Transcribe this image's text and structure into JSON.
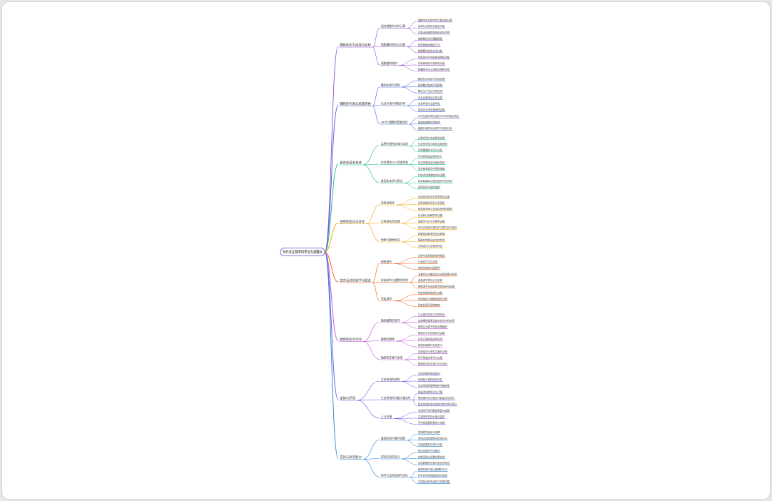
{
  "root": {
    "label": "专升本生物学科考试大纲要点",
    "color": "#6b4ec9"
  },
  "branches": [
    {
      "label": "细胞的化学组成与结构",
      "color": "#8e44d9",
      "subs": [
        {
          "label": "组成细胞的化学元素",
          "leaves": [
            "细胞中常见的化学元素及其分类",
            "各种化合物的含量及功能",
            "水和无机盐的存在形式与作用"
          ]
        },
        {
          "label": "细胞膜的结构与功能",
          "leaves": [
            "细胞膜的流动镶嵌模型",
            "物质跨膜运输的方式",
            "细胞膜的信息交流功能"
          ]
        },
        {
          "label": "细胞器的结构",
          "leaves": [
            "线粒体与叶绿体的结构和功能",
            "内质网和高尔基体的功能",
            "核糖体与中心体的分布和作用"
          ]
        }
      ]
    },
    {
      "label": "细胞的代谢与能量转换",
      "color": "#3b5bdb",
      "subs": [
        {
          "label": "酶的本质与特性",
          "leaves": [
            "酶的化学本质与作用机理",
            "影响酶活性的环境因素",
            "酶在生产生活中的应用"
          ]
        },
        {
          "label": "光合作用与呼吸作用",
          "leaves": [
            "光反应和暗反应的过程",
            "有氧呼吸与无氧呼吸",
            "影响光合作用速率的因素"
          ]
        },
        {
          "label": "ATP与细胞的能量供应",
          "leaves": [
            "ATP的结构简式及其与ADP的相互转化",
            "能量在细胞中的转换",
            "细胞代谢的综合调节与实例分析"
          ]
        }
      ]
    },
    {
      "label": "遗传的基本规律",
      "color": "#12b886",
      "subs": [
        {
          "label": "孟德尔遗传定律与实验",
          "leaves": [
            "分离定律与自由组合定律",
            "性状的显性与隐性及其表现",
            "遗传图解的书写与分析"
          ]
        },
        {
          "label": "伴性遗传与人类遗传病",
          "leaves": [
            "伴X染色体遗传的特点",
            "常见单基因遗传病的类型",
            "遗传病的监测与预防措施"
          ]
        },
        {
          "label": "基因的本质与表达",
          "leaves": [
            "DNA的双螺旋结构与复制",
            "转录和翻译过程及密码子的作用",
            "基因突变与基因重组"
          ]
        }
      ]
    },
    {
      "label": "生物的变异与进化",
      "color": "#f59f00",
      "subs": [
        {
          "label": "染色体变异",
          "leaves": [
            "染色体结构变异的类型及后果",
            "染色体数目变异与多倍体",
            "单倍体育种与多倍体育种的原理"
          ]
        },
        {
          "label": "生物进化的证据",
          "leaves": [
            "化石和比较解剖学证据",
            "胚胎学与分子生物学证据",
            "现代生物进化理论的主要内容与观点"
          ]
        },
        {
          "label": "种群与物种形成",
          "leaves": [
            "种群基因频率的变化规律",
            "隔离在物种形成中的作用",
            "共同进化与生物多样性"
          ]
        }
      ]
    },
    {
      "label": "生命活动的调节与稳态",
      "color": "#e8590c",
      "subs": [
        {
          "label": "神经调节",
          "leaves": [
            "反射与反射弧的结构组成",
            "兴奋的产生与传导",
            "神经系统的分级调节"
          ]
        },
        {
          "label": "体液调节与激素的作用",
          "leaves": [
            "主要内分泌腺及其分泌的激素与作用",
            "激素调节的特点与实例",
            "神经调节与体液调节的关系与协调"
          ]
        },
        {
          "label": "免疫调节",
          "leaves": [
            "免疫系统的组成与功能",
            "体液免疫与细胞免疫的过程",
            "免疫失调引起的疾病"
          ]
        }
      ]
    },
    {
      "label": "植物的生命活动",
      "color": "#be4bdb",
      "subs": [
        {
          "label": "植物激素的调节",
          "leaves": [
            "生长素的发现与生理作用",
            "其他植物激素及其在农业中的应用",
            "植物生长调节剂的合理使用"
          ]
        },
        {
          "label": "植物的营养",
          "leaves": [
            "植物对水分的吸收与运输",
            "矿质元素的吸收和利用",
            "植物的蒸腾作用及意义"
          ]
        },
        {
          "label": "植物的生殖与发育",
          "leaves": [
            "花的结构与有性生殖的过程",
            "种子萌发的条件与过程",
            "植物的无性生殖方式与应用"
          ]
        }
      ]
    },
    {
      "label": "生物与环境",
      "color": "#7048e8",
      "subs": [
        {
          "label": "生态系统的结构",
          "leaves": [
            "生态系统的组成成分",
            "食物链与食物网的关系",
            "生态系统的营养结构与稳定性"
          ]
        },
        {
          "label": "生态系统的功能与稳定性",
          "leaves": [
            "能量流动的特点与计算",
            "物质循环的过程及与能量流动关系",
            "信息传递在生态系统中的作用与意义"
          ]
        },
        {
          "label": "人与环境",
          "leaves": [
            "全球性环境问题的类型与成因",
            "生物多样性的价值与保护",
            "可持续发展的理念与实践"
          ]
        }
      ]
    },
    {
      "label": "实验与探究能力",
      "color": "#1c7ed6",
      "subs": [
        {
          "label": "基础实验与操作技能",
          "leaves": [
            "显微镜的使用与观察",
            "常用试剂的配制与检测方法",
            "实验结果的记录与分析"
          ]
        },
        {
          "label": "探究实验的设计",
          "leaves": [
            "提出问题与作出假设",
            "控制变量与设置对照实验",
            "实验数据的处理与结论的得出"
          ]
        },
        {
          "label": "科学方法的应用与评价",
          "leaves": [
            "模型构建与类比推理的方法",
            "科学史中的经典实验与思想",
            "生物技术的安全性与伦理问题"
          ]
        }
      ]
    }
  ]
}
